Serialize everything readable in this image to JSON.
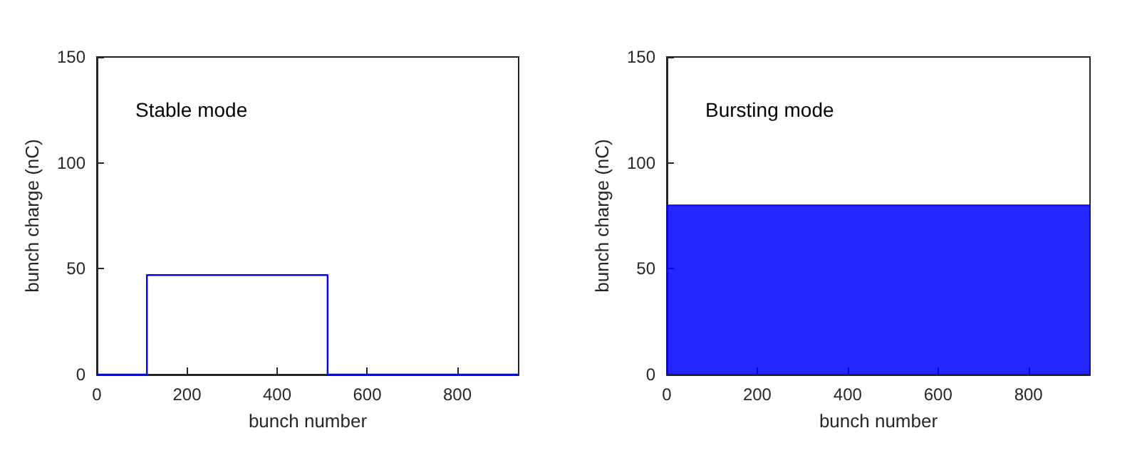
{
  "chart_data": [
    {
      "type": "line",
      "xlabel": "bunch number",
      "ylabel": "bunch charge (nC)",
      "annotations": [
        "Stable mode"
      ],
      "xlim": [
        0,
        936
      ],
      "xticks": [
        0,
        200,
        400,
        600,
        800
      ],
      "ylim": [
        0,
        150
      ],
      "yticks": [
        0,
        50,
        100,
        150
      ],
      "x": [
        0,
        111,
        111,
        512,
        512,
        936
      ],
      "series": [
        {
          "color": "#0000ff",
          "values": [
            0,
            0,
            47,
            47,
            0,
            0
          ]
        }
      ]
    },
    {
      "type": "area",
      "xlabel": "bunch number",
      "ylabel": "bunch charge (nC)",
      "annotations": [
        "Bursting mode"
      ],
      "xlim": [
        0,
        936
      ],
      "xticks": [
        0,
        200,
        400,
        600,
        800
      ],
      "ylim": [
        0,
        150
      ],
      "yticks": [
        0,
        50,
        100,
        150
      ],
      "x": [
        0,
        936
      ],
      "series": [
        {
          "color": "#0000ff",
          "values": [
            80,
            80
          ]
        }
      ]
    }
  ]
}
